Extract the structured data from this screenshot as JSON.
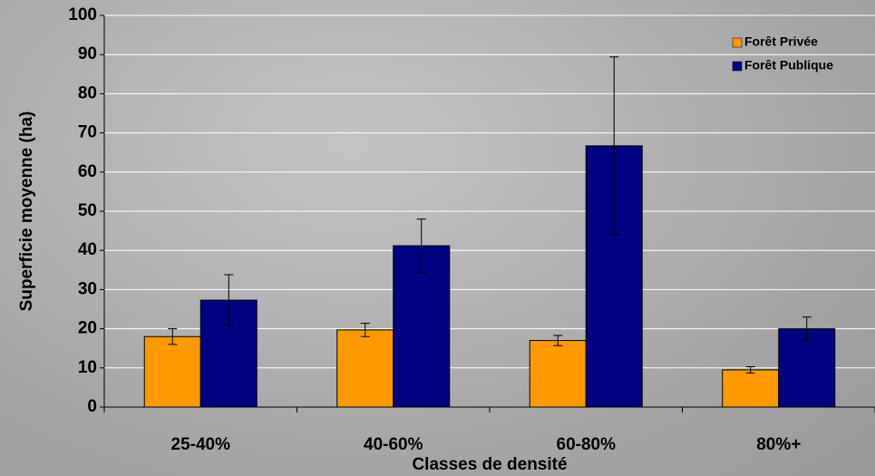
{
  "chart_data": {
    "type": "bar",
    "y_label": "Superficie moyenne (ha)",
    "x_label": "Classes de densité",
    "categories": [
      "25-40%",
      "40-60%",
      "60-80%",
      "80%+"
    ],
    "series": [
      {
        "name": "Forêt Privée",
        "color": "#ff9900",
        "values": [
          18,
          19.7,
          17,
          9.5
        ],
        "errors": [
          2,
          1.7,
          1.3,
          0.8
        ]
      },
      {
        "name": "Forêt Publique",
        "color": "#000080",
        "values": [
          27.3,
          41.2,
          66.7,
          20
        ],
        "errors": [
          6.5,
          6.8,
          22.7,
          3
        ]
      }
    ],
    "ylim": [
      0,
      100
    ],
    "yticks": [
      0,
      10,
      20,
      30,
      40,
      50,
      60,
      70,
      80,
      90,
      100
    ],
    "grid": true,
    "legend": "top-right"
  }
}
